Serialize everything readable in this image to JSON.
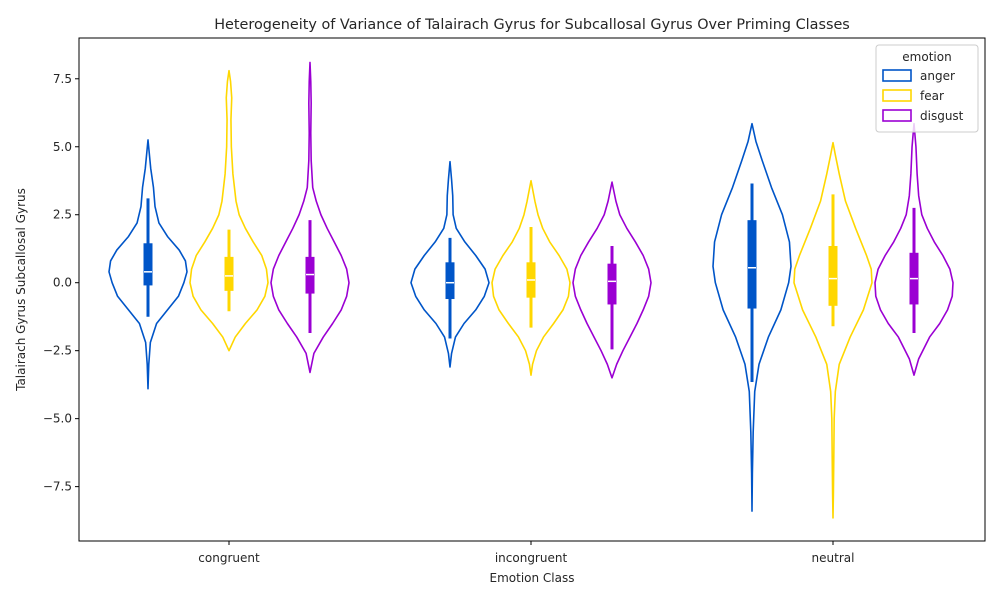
{
  "chart_data": {
    "type": "violin",
    "title": "Heterogeneity of Variance of Talairach Gyrus for Subcallosal Gyrus Over Priming Classes",
    "xlabel": "Emotion Class",
    "ylabel": "Talairach Gyrus Subcallosal Gyrus",
    "categories": [
      "congruent",
      "incongruent",
      "neutral"
    ],
    "ylim": [
      -9.5,
      9.0
    ],
    "yticks": [
      -7.5,
      -5.0,
      -2.5,
      0.0,
      2.5,
      5.0,
      7.5
    ],
    "ytick_labels": [
      "−7.5",
      "−5.0",
      "−2.5",
      "0.0",
      "2.5",
      "5.0",
      "7.5"
    ],
    "legend": {
      "title": "emotion",
      "placement": "upper right"
    },
    "series": [
      {
        "name": "anger",
        "color": "#0055c8",
        "groups": [
          {
            "min": -3.9,
            "max": 5.25,
            "q1": -0.1,
            "median": 0.4,
            "q3": 1.45,
            "whisker_low": -1.25,
            "whisker_high": 3.1,
            "density": [
              [
                -3.9,
                0.0
              ],
              [
                -3.0,
                0.02
              ],
              [
                -2.2,
                0.06
              ],
              [
                -1.5,
                0.22
              ],
              [
                -1.0,
                0.5
              ],
              [
                -0.5,
                0.78
              ],
              [
                0.0,
                0.92
              ],
              [
                0.4,
                1.0
              ],
              [
                0.8,
                0.96
              ],
              [
                1.2,
                0.8
              ],
              [
                1.7,
                0.5
              ],
              [
                2.2,
                0.28
              ],
              [
                2.8,
                0.18
              ],
              [
                3.5,
                0.14
              ],
              [
                4.2,
                0.07
              ],
              [
                4.8,
                0.03
              ],
              [
                5.25,
                0.0
              ]
            ]
          },
          {
            "min": -3.1,
            "max": 4.45,
            "q1": -0.6,
            "median": 0.0,
            "q3": 0.75,
            "whisker_low": -2.05,
            "whisker_high": 1.65,
            "density": [
              [
                -3.1,
                0.0
              ],
              [
                -2.6,
                0.04
              ],
              [
                -2.0,
                0.14
              ],
              [
                -1.5,
                0.36
              ],
              [
                -1.0,
                0.66
              ],
              [
                -0.5,
                0.88
              ],
              [
                0.0,
                1.0
              ],
              [
                0.5,
                0.9
              ],
              [
                1.0,
                0.66
              ],
              [
                1.5,
                0.38
              ],
              [
                2.0,
                0.16
              ],
              [
                2.5,
                0.08
              ],
              [
                3.2,
                0.07
              ],
              [
                3.8,
                0.04
              ],
              [
                4.45,
                0.0
              ]
            ]
          },
          {
            "min": -8.4,
            "max": 5.85,
            "q1": -0.95,
            "median": 0.55,
            "q3": 2.3,
            "whisker_low": -3.65,
            "whisker_high": 3.65,
            "density": [
              [
                -8.4,
                0.0
              ],
              [
                -7.0,
                0.01
              ],
              [
                -5.5,
                0.03
              ],
              [
                -4.0,
                0.07
              ],
              [
                -3.0,
                0.18
              ],
              [
                -2.0,
                0.42
              ],
              [
                -1.0,
                0.74
              ],
              [
                0.0,
                0.94
              ],
              [
                0.6,
                1.0
              ],
              [
                1.5,
                0.96
              ],
              [
                2.5,
                0.78
              ],
              [
                3.5,
                0.5
              ],
              [
                4.5,
                0.26
              ],
              [
                5.2,
                0.1
              ],
              [
                5.85,
                0.0
              ]
            ]
          }
        ]
      },
      {
        "name": "fear",
        "color": "#ffd700",
        "groups": [
          {
            "min": -2.5,
            "max": 7.8,
            "q1": -0.3,
            "median": 0.25,
            "q3": 0.95,
            "whisker_low": -1.05,
            "whisker_high": 1.95,
            "density": [
              [
                -2.5,
                0.0
              ],
              [
                -2.0,
                0.16
              ],
              [
                -1.5,
                0.42
              ],
              [
                -1.0,
                0.72
              ],
              [
                -0.5,
                0.92
              ],
              [
                0.0,
                1.0
              ],
              [
                0.5,
                0.96
              ],
              [
                1.0,
                0.84
              ],
              [
                1.5,
                0.62
              ],
              [
                2.0,
                0.42
              ],
              [
                2.5,
                0.26
              ],
              [
                3.0,
                0.18
              ],
              [
                4.0,
                0.1
              ],
              [
                5.0,
                0.06
              ],
              [
                6.0,
                0.05
              ],
              [
                6.8,
                0.07
              ],
              [
                7.4,
                0.04
              ],
              [
                7.8,
                0.0
              ]
            ]
          },
          {
            "min": -3.4,
            "max": 3.75,
            "q1": -0.55,
            "median": 0.1,
            "q3": 0.75,
            "whisker_low": -1.65,
            "whisker_high": 2.05,
            "density": [
              [
                -3.4,
                0.0
              ],
              [
                -3.0,
                0.04
              ],
              [
                -2.5,
                0.14
              ],
              [
                -2.0,
                0.32
              ],
              [
                -1.5,
                0.58
              ],
              [
                -1.0,
                0.82
              ],
              [
                -0.5,
                0.96
              ],
              [
                0.0,
                1.0
              ],
              [
                0.5,
                0.92
              ],
              [
                1.0,
                0.72
              ],
              [
                1.5,
                0.48
              ],
              [
                2.0,
                0.3
              ],
              [
                2.5,
                0.18
              ],
              [
                3.0,
                0.1
              ],
              [
                3.75,
                0.0
              ]
            ]
          },
          {
            "min": -8.65,
            "max": 5.15,
            "q1": -0.85,
            "median": 0.15,
            "q3": 1.35,
            "whisker_low": -1.6,
            "whisker_high": 3.25,
            "density": [
              [
                -8.65,
                0.0
              ],
              [
                -7.8,
                0.01
              ],
              [
                -6.5,
                0.02
              ],
              [
                -5.0,
                0.03
              ],
              [
                -4.0,
                0.06
              ],
              [
                -3.0,
                0.16
              ],
              [
                -2.0,
                0.44
              ],
              [
                -1.0,
                0.78
              ],
              [
                0.0,
                1.0
              ],
              [
                0.5,
                0.98
              ],
              [
                1.0,
                0.86
              ],
              [
                2.0,
                0.58
              ],
              [
                3.0,
                0.32
              ],
              [
                4.0,
                0.16
              ],
              [
                4.7,
                0.06
              ],
              [
                5.15,
                0.0
              ]
            ]
          }
        ]
      },
      {
        "name": "disgust",
        "color": "#9b00d3",
        "groups": [
          {
            "min": -3.3,
            "max": 8.1,
            "q1": -0.4,
            "median": 0.3,
            "q3": 0.95,
            "whisker_low": -1.85,
            "whisker_high": 2.3,
            "density": [
              [
                -3.3,
                0.0
              ],
              [
                -2.6,
                0.1
              ],
              [
                -2.0,
                0.34
              ],
              [
                -1.5,
                0.58
              ],
              [
                -1.0,
                0.8
              ],
              [
                -0.5,
                0.94
              ],
              [
                0.0,
                1.0
              ],
              [
                0.5,
                0.94
              ],
              [
                1.0,
                0.8
              ],
              [
                1.5,
                0.62
              ],
              [
                2.0,
                0.44
              ],
              [
                2.5,
                0.28
              ],
              [
                3.0,
                0.16
              ],
              [
                3.5,
                0.07
              ],
              [
                4.5,
                0.03
              ],
              [
                5.5,
                0.02
              ],
              [
                6.6,
                0.03
              ],
              [
                7.4,
                0.02
              ],
              [
                8.1,
                0.0
              ]
            ]
          },
          {
            "min": -3.5,
            "max": 3.7,
            "q1": -0.8,
            "median": 0.05,
            "q3": 0.7,
            "whisker_low": -2.45,
            "whisker_high": 1.35,
            "density": [
              [
                -3.5,
                0.0
              ],
              [
                -3.0,
                0.12
              ],
              [
                -2.5,
                0.28
              ],
              [
                -2.0,
                0.46
              ],
              [
                -1.5,
                0.64
              ],
              [
                -1.0,
                0.8
              ],
              [
                -0.5,
                0.94
              ],
              [
                0.0,
                1.0
              ],
              [
                0.5,
                0.94
              ],
              [
                1.0,
                0.8
              ],
              [
                1.5,
                0.6
              ],
              [
                2.0,
                0.38
              ],
              [
                2.5,
                0.2
              ],
              [
                3.0,
                0.1
              ],
              [
                3.7,
                0.0
              ]
            ]
          },
          {
            "min": -3.4,
            "max": 5.85,
            "q1": -0.8,
            "median": 0.15,
            "q3": 1.1,
            "whisker_low": -1.85,
            "whisker_high": 2.75,
            "density": [
              [
                -3.4,
                0.0
              ],
              [
                -2.8,
                0.12
              ],
              [
                -2.0,
                0.4
              ],
              [
                -1.5,
                0.66
              ],
              [
                -1.0,
                0.86
              ],
              [
                -0.5,
                0.98
              ],
              [
                0.0,
                1.0
              ],
              [
                0.5,
                0.92
              ],
              [
                1.0,
                0.74
              ],
              [
                1.5,
                0.52
              ],
              [
                2.0,
                0.34
              ],
              [
                2.5,
                0.2
              ],
              [
                3.2,
                0.12
              ],
              [
                4.0,
                0.08
              ],
              [
                5.0,
                0.05
              ],
              [
                5.85,
                0.0
              ]
            ]
          }
        ]
      }
    ]
  }
}
